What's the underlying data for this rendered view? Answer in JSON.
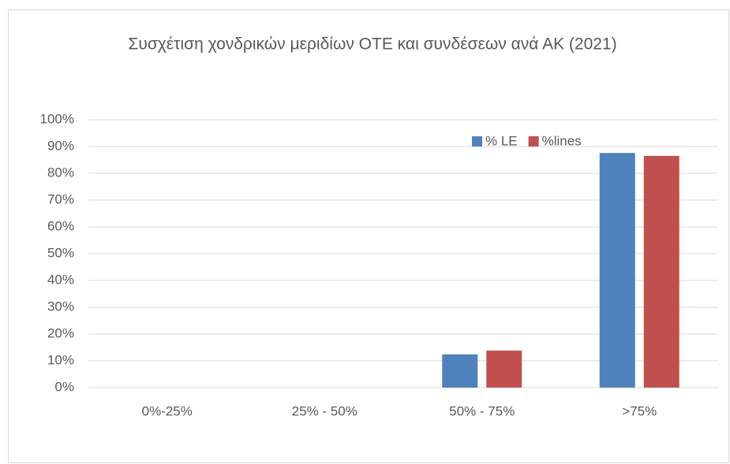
{
  "chart_data": {
    "type": "bar",
    "title": "Συσχέτιση χονδρικών μεριδίων ΟΤΕ και συνδέσεων ανά ΑΚ (2021)",
    "categories": [
      "0%-25%",
      "25% - 50%",
      "50% - 75%",
      ">75%"
    ],
    "series": [
      {
        "name": "% LE",
        "color": "#4f81bd",
        "values": [
          0,
          0,
          12.4,
          87.6
        ]
      },
      {
        "name": "%lines",
        "color": "#c0504d",
        "values": [
          0,
          0,
          13.8,
          86.5
        ]
      }
    ],
    "ylim": [
      0,
      100
    ],
    "yticks": [
      {
        "value": 0,
        "label": "0%"
      },
      {
        "value": 10,
        "label": "10%"
      },
      {
        "value": 20,
        "label": "20%"
      },
      {
        "value": 30,
        "label": "30%"
      },
      {
        "value": 40,
        "label": "40%"
      },
      {
        "value": 50,
        "label": "50%"
      },
      {
        "value": 60,
        "label": "60%"
      },
      {
        "value": 70,
        "label": "70%"
      },
      {
        "value": 80,
        "label": "80%"
      },
      {
        "value": 90,
        "label": "90%"
      },
      {
        "value": 100,
        "label": "100%"
      }
    ],
    "grid": true,
    "legend": "top-right"
  }
}
